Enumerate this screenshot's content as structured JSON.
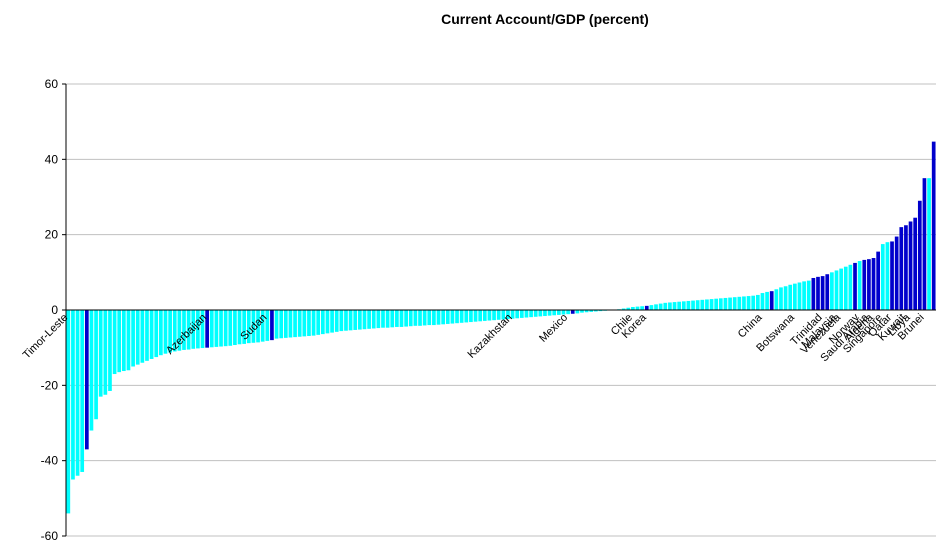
{
  "chart_data": {
    "type": "bar",
    "title": "Current Account/GDP (percent)",
    "ylim": [
      -60,
      60
    ],
    "yticks": [
      -60,
      -40,
      -20,
      0,
      20,
      40,
      60
    ],
    "grid": true,
    "categories": [
      "Timor-Leste",
      null,
      null,
      null,
      null,
      null,
      null,
      null,
      null,
      null,
      null,
      null,
      null,
      null,
      null,
      null,
      null,
      null,
      null,
      null,
      null,
      null,
      null,
      null,
      null,
      null,
      null,
      null,
      null,
      null,
      "Azerbaijan",
      null,
      null,
      null,
      null,
      null,
      null,
      null,
      null,
      null,
      null,
      null,
      null,
      "Sudan",
      null,
      null,
      null,
      null,
      null,
      null,
      null,
      null,
      null,
      null,
      null,
      null,
      null,
      null,
      null,
      null,
      null,
      null,
      null,
      null,
      null,
      null,
      null,
      null,
      null,
      null,
      null,
      null,
      null,
      null,
      null,
      null,
      null,
      null,
      null,
      null,
      null,
      null,
      null,
      null,
      null,
      null,
      null,
      null,
      null,
      null,
      null,
      null,
      null,
      null,
      null,
      null,
      "Kazakhstan",
      null,
      null,
      null,
      null,
      null,
      null,
      null,
      null,
      null,
      null,
      null,
      "Mexico",
      null,
      null,
      null,
      null,
      null,
      null,
      null,
      null,
      null,
      null,
      null,
      null,
      null,
      "Chile",
      null,
      null,
      "Korea",
      null,
      null,
      null,
      null,
      null,
      null,
      null,
      null,
      null,
      null,
      null,
      null,
      null,
      null,
      null,
      null,
      null,
      null,
      null,
      null,
      null,
      null,
      null,
      null,
      "China",
      null,
      null,
      null,
      null,
      null,
      null,
      "Botswana",
      null,
      null,
      null,
      null,
      null,
      "Trinidad",
      null,
      null,
      "Malaysia",
      "Venezuela",
      null,
      null,
      null,
      "Norway",
      null,
      "Saudi Arabia",
      "Algeria",
      null,
      "Singapore",
      null,
      "Qatar",
      null,
      null,
      "Kuwait",
      "Libya",
      null,
      null,
      "Brunei",
      null,
      null
    ],
    "values": [
      -54,
      -45,
      -44,
      -43,
      -37,
      -32,
      -29,
      -23,
      -22.5,
      -21.5,
      -17,
      -16.5,
      -16.2,
      -16,
      -15,
      -14.5,
      -14,
      -13.5,
      -13,
      -12.5,
      -12,
      -11.6,
      -11.3,
      -11,
      -10.8,
      -10.6,
      -10.5,
      -10.3,
      -10.2,
      -10.1,
      -10,
      -9.9,
      -9.8,
      -9.7,
      -9.6,
      -9.5,
      -9.3,
      -9.1,
      -9,
      -8.8,
      -8.7,
      -8.6,
      -8.4,
      -8.2,
      -8,
      -7.6,
      -7.5,
      -7.4,
      -7.3,
      -7.2,
      -7.1,
      -7,
      -6.9,
      -6.8,
      -6.6,
      -6.4,
      -6.2,
      -6,
      -5.8,
      -5.6,
      -5.5,
      -5.4,
      -5.3,
      -5.2,
      -5.1,
      -5,
      -4.9,
      -4.8,
      -4.7,
      -4.7,
      -4.6,
      -4.5,
      -4.5,
      -4.4,
      -4.3,
      -4.2,
      -4.2,
      -4.1,
      -4,
      -4,
      -3.9,
      -3.8,
      -3.7,
      -3.6,
      -3.5,
      -3.4,
      -3.3,
      -3.2,
      -3.1,
      -3,
      -2.9,
      -2.8,
      -2.7,
      -2.6,
      -2.5,
      -2.4,
      -2.3,
      -2.2,
      -2.1,
      -2,
      -1.9,
      -1.8,
      -1.7,
      -1.6,
      -1.5,
      -1.4,
      -1.3,
      -1.2,
      -1.1,
      -1,
      -0.9,
      -0.7,
      -0.6,
      -0.5,
      -0.4,
      -0.3,
      -0.2,
      -0.1,
      0.1,
      0.2,
      0.4,
      0.6,
      0.8,
      0.9,
      1,
      1.1,
      1.3,
      1.5,
      1.7,
      1.9,
      2,
      2.1,
      2.2,
      2.3,
      2.4,
      2.5,
      2.6,
      2.7,
      2.8,
      2.9,
      3,
      3.1,
      3.2,
      3.3,
      3.4,
      3.5,
      3.6,
      3.7,
      3.8,
      4,
      4.5,
      4.8,
      5,
      5.5,
      6,
      6.3,
      6.7,
      7,
      7.3,
      7.6,
      7.8,
      8.5,
      8.8,
      9,
      9.5,
      10,
      10.5,
      11,
      11.5,
      12,
      12.5,
      13,
      13.3,
      13.5,
      13.8,
      15.5,
      17.5,
      18,
      18.2,
      19.5,
      22,
      22.5,
      23.5,
      24.5,
      29,
      35,
      35,
      44.7
    ],
    "colors": [
      "#00ffff",
      "#00ffff",
      "#00ffff",
      "#00ffff",
      "#0000cc",
      "#00ffff",
      "#00ffff",
      "#00ffff",
      "#00ffff",
      "#00ffff",
      "#00ffff",
      "#00ffff",
      "#00ffff",
      "#00ffff",
      "#00ffff",
      "#00ffff",
      "#00ffff",
      "#00ffff",
      "#00ffff",
      "#00ffff",
      "#00ffff",
      "#00ffff",
      "#00ffff",
      "#00ffff",
      "#00ffff",
      "#00ffff",
      "#00ffff",
      "#00ffff",
      "#00ffff",
      "#00ffff",
      "#0000cc",
      "#00ffff",
      "#00ffff",
      "#00ffff",
      "#00ffff",
      "#00ffff",
      "#00ffff",
      "#00ffff",
      "#00ffff",
      "#00ffff",
      "#00ffff",
      "#00ffff",
      "#00ffff",
      "#00ffff",
      "#0000cc",
      "#00ffff",
      "#00ffff",
      "#00ffff",
      "#00ffff",
      "#00ffff",
      "#00ffff",
      "#00ffff",
      "#00ffff",
      "#00ffff",
      "#00ffff",
      "#00ffff",
      "#00ffff",
      "#00ffff",
      "#00ffff",
      "#00ffff",
      "#00ffff",
      "#00ffff",
      "#00ffff",
      "#00ffff",
      "#00ffff",
      "#00ffff",
      "#00ffff",
      "#00ffff",
      "#00ffff",
      "#00ffff",
      "#00ffff",
      "#00ffff",
      "#00ffff",
      "#00ffff",
      "#00ffff",
      "#00ffff",
      "#00ffff",
      "#00ffff",
      "#00ffff",
      "#00ffff",
      "#00ffff",
      "#00ffff",
      "#00ffff",
      "#00ffff",
      "#00ffff",
      "#00ffff",
      "#00ffff",
      "#00ffff",
      "#00ffff",
      "#00ffff",
      "#00ffff",
      "#00ffff",
      "#00ffff",
      "#00ffff",
      "#00ffff",
      "#00ffff",
      "#00ffff",
      "#00ffff",
      "#00ffff",
      "#00ffff",
      "#00ffff",
      "#00ffff",
      "#00ffff",
      "#00ffff",
      "#00ffff",
      "#00ffff",
      "#00ffff",
      "#00ffff",
      "#00ffff",
      "#0000cc",
      "#00ffff",
      "#00ffff",
      "#00ffff",
      "#00ffff",
      "#00ffff",
      "#00ffff",
      "#00ffff",
      "#00ffff",
      "#00ffff",
      "#00ffff",
      "#00ffff",
      "#00ffff",
      "#00ffff",
      "#00ffff",
      "#00ffff",
      "#0000cc",
      "#00ffff",
      "#00ffff",
      "#00ffff",
      "#00ffff",
      "#00ffff",
      "#00ffff",
      "#00ffff",
      "#00ffff",
      "#00ffff",
      "#00ffff",
      "#00ffff",
      "#00ffff",
      "#00ffff",
      "#00ffff",
      "#00ffff",
      "#00ffff",
      "#00ffff",
      "#00ffff",
      "#00ffff",
      "#00ffff",
      "#00ffff",
      "#00ffff",
      "#00ffff",
      "#00ffff",
      "#00ffff",
      "#00ffff",
      "#0000cc",
      "#00ffff",
      "#00ffff",
      "#00ffff",
      "#00ffff",
      "#00ffff",
      "#00ffff",
      "#00ffff",
      "#00ffff",
      "#0000cc",
      "#0000cc",
      "#0000cc",
      "#0000cc",
      "#00ffff",
      "#00ffff",
      "#00ffff",
      "#00ffff",
      "#00ffff",
      "#0000cc",
      "#00ffff",
      "#0000cc",
      "#0000cc",
      "#0000cc",
      "#0000cc",
      "#00ffff",
      "#00ffff",
      "#0000cc",
      "#0000cc",
      "#0000cc",
      "#0000cc",
      "#0000cc",
      "#0000cc",
      "#0000cc",
      "#0000cc",
      "#00ffff",
      "#0000cc"
    ]
  }
}
